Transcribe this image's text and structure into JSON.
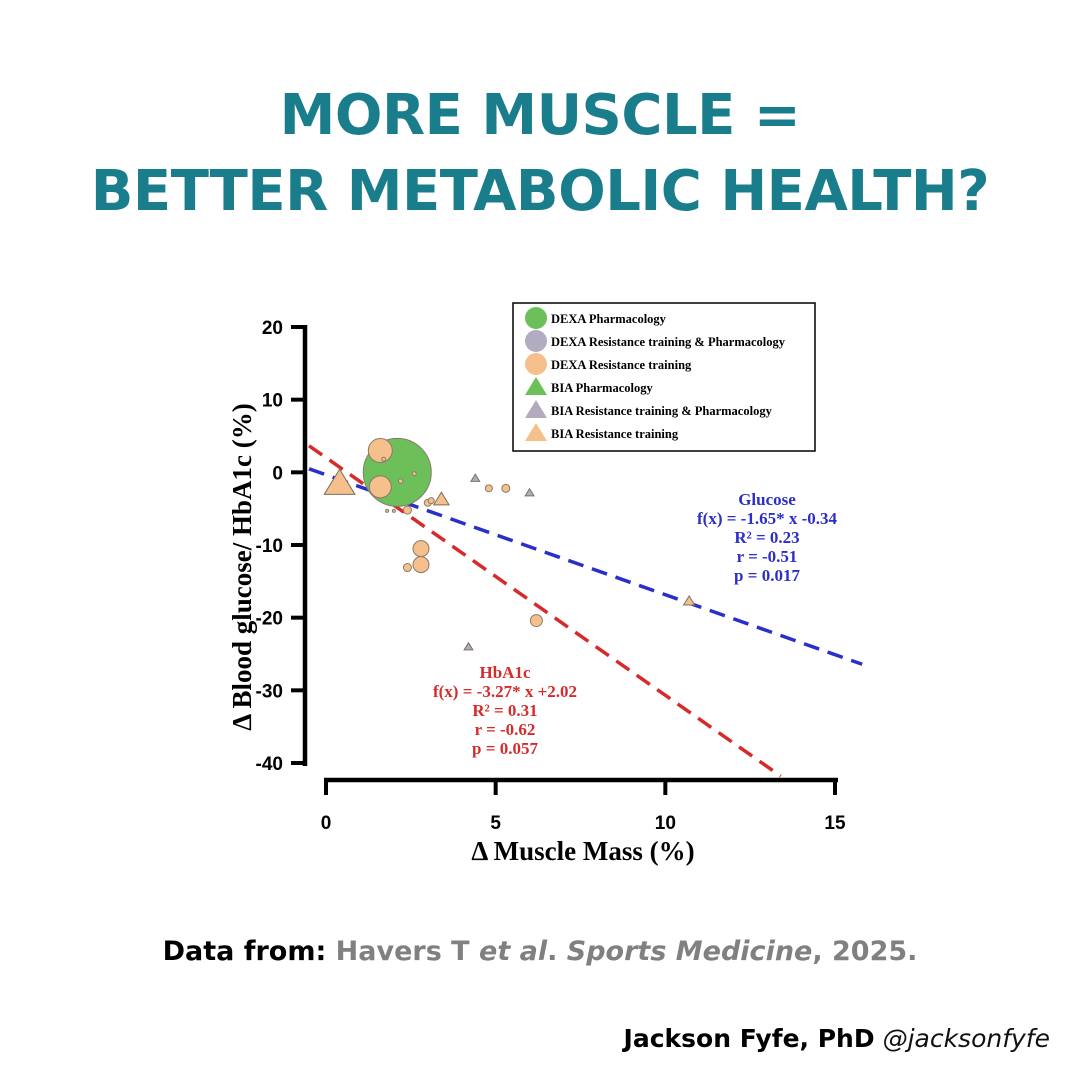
{
  "headline": {
    "line1": "MORE MUSCLE =",
    "line2": "BETTER METABOLIC HEALTH?"
  },
  "colors": {
    "headline": "#1a7d8c",
    "glucose": "#2b2fc9",
    "hba1c": "#d62b2b",
    "green": "#6dbf5a",
    "grey": "#b3acc0",
    "orange": "#f5c08b"
  },
  "chart_data": {
    "type": "scatter",
    "xlabel": "Δ Muscle Mass (%)",
    "ylabel": "Δ Blood glucose/ HbA1c (%)",
    "xlim": [
      -0.5,
      15.8
    ],
    "ylim": [
      -41,
      20
    ],
    "xticks": [
      0,
      5,
      10,
      15
    ],
    "yticks": [
      20,
      10,
      0,
      -10,
      -20,
      -30,
      -40
    ],
    "legend_position": "top-right",
    "legend": [
      {
        "label": "DEXA Pharmacology",
        "shape": "circle",
        "color": "#6dbf5a"
      },
      {
        "label": "DEXA Resistance training & Pharmacology",
        "shape": "circle",
        "color": "#b3acc0"
      },
      {
        "label": "DEXA Resistance training",
        "shape": "circle",
        "color": "#f5c08b"
      },
      {
        "label": "BIA Pharmacology",
        "shape": "triangle",
        "color": "#6dbf5a"
      },
      {
        "label": "BIA Resistance training & Pharmacology",
        "shape": "triangle",
        "color": "#b3acc0"
      },
      {
        "label": "BIA Resistance training",
        "shape": "triangle",
        "color": "#f5c08b"
      }
    ],
    "points": [
      {
        "x": 2.1,
        "y": 0.0,
        "size": 34,
        "shape": "circle",
        "color": "#6dbf5a"
      },
      {
        "x": 1.6,
        "y": 3.0,
        "size": 12,
        "shape": "circle",
        "color": "#f5c08b"
      },
      {
        "x": 1.6,
        "y": -2.0,
        "size": 11,
        "shape": "circle",
        "color": "#f5c08b"
      },
      {
        "x": 2.8,
        "y": -10.5,
        "size": 8,
        "shape": "circle",
        "color": "#f5c08b"
      },
      {
        "x": 2.8,
        "y": -12.7,
        "size": 8,
        "shape": "circle",
        "color": "#f5c08b"
      },
      {
        "x": 2.4,
        "y": -13.1,
        "size": 4,
        "shape": "circle",
        "color": "#f5c08b"
      },
      {
        "x": 2.4,
        "y": -5.2,
        "size": 4,
        "shape": "circle",
        "color": "#f5c08b"
      },
      {
        "x": 3.0,
        "y": -4.2,
        "size": 3.5,
        "shape": "circle",
        "color": "#f5c08b"
      },
      {
        "x": 3.1,
        "y": -3.9,
        "size": 3,
        "shape": "circle",
        "color": "#f5c08b"
      },
      {
        "x": 4.8,
        "y": -2.2,
        "size": 3.5,
        "shape": "circle",
        "color": "#f5c08b"
      },
      {
        "x": 5.3,
        "y": -2.2,
        "size": 4,
        "shape": "circle",
        "color": "#f5c08b"
      },
      {
        "x": 6.2,
        "y": -20.4,
        "size": 6,
        "shape": "circle",
        "color": "#f5c08b"
      },
      {
        "x": 1.7,
        "y": 1.8,
        "size": 2,
        "shape": "circle",
        "color": "#f5c08b"
      },
      {
        "x": 2.2,
        "y": -1.2,
        "size": 2.2,
        "shape": "circle",
        "color": "#f5c08b"
      },
      {
        "x": 2.6,
        "y": -0.2,
        "size": 2,
        "shape": "circle",
        "color": "#f5c08b"
      },
      {
        "x": 1.8,
        "y": -5.3,
        "size": 1.5,
        "shape": "circle",
        "color": "#f5c08b"
      },
      {
        "x": 2.0,
        "y": -5.3,
        "size": 1.5,
        "shape": "circle",
        "color": "#f5c08b"
      },
      {
        "x": 0.4,
        "y": -1.5,
        "size": 14,
        "shape": "triangle",
        "color": "#f5c08b"
      },
      {
        "x": 3.4,
        "y": -3.7,
        "size": 7,
        "shape": "triangle",
        "color": "#f5c08b"
      },
      {
        "x": 4.4,
        "y": -0.8,
        "size": 4,
        "shape": "triangle",
        "color": "#b3acc0"
      },
      {
        "x": 6.0,
        "y": -2.8,
        "size": 4,
        "shape": "triangle",
        "color": "#b3acc0"
      },
      {
        "x": 4.2,
        "y": -24.0,
        "size": 4,
        "shape": "triangle",
        "color": "#b3acc0"
      },
      {
        "x": 10.7,
        "y": -17.7,
        "size": 5,
        "shape": "triangle",
        "color": "#f5c08b"
      }
    ],
    "fits": [
      {
        "name": "Glucose",
        "slope": -1.65,
        "intercept": -0.34,
        "color": "#2b2fc9",
        "x_range": [
          -0.5,
          15.8
        ],
        "annotation": [
          "Glucose",
          "f(x) = -1.65* x -0.34",
          "R² = 0.23",
          "r = -0.51",
          "p = 0.017"
        ]
      },
      {
        "name": "HbA1c",
        "slope": -3.27,
        "intercept": 2.02,
        "color": "#d62b2b",
        "x_range": [
          -0.5,
          13.4
        ],
        "annotation": [
          "HbA1c",
          "f(x) = -3.27* x +2.02",
          "R² = 0.31",
          "r = -0.62",
          "p = 0.057"
        ]
      }
    ]
  },
  "source": {
    "label": "Data from:",
    "authors": "Havers T ",
    "etal": "et al",
    "dot": ". ",
    "journal": "Sports Medicine",
    "year": ", 2025."
  },
  "credit": {
    "name": "Jackson Fyfe, PhD",
    "handle": "@jacksonfyfe"
  }
}
